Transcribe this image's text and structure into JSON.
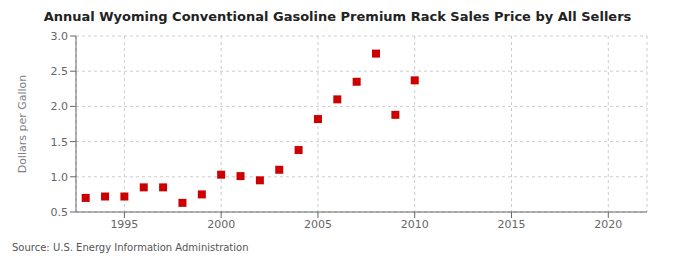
{
  "chart_data": {
    "type": "scatter",
    "title": "Annual Wyoming Conventional Gasoline Premium Rack Sales Price by All Sellers",
    "ylabel": "Dollars per Gallon",
    "annotation": "Source: U.S. Energy Information Administration",
    "x": [
      1993,
      1994,
      1995,
      1996,
      1997,
      1998,
      1999,
      2000,
      2001,
      2002,
      2003,
      2004,
      2005,
      2006,
      2007,
      2008,
      2009,
      2010
    ],
    "values": [
      0.7,
      0.72,
      0.72,
      0.85,
      0.85,
      0.63,
      0.75,
      1.03,
      1.01,
      0.95,
      1.1,
      1.38,
      1.82,
      2.1,
      2.35,
      2.75,
      1.88,
      2.37
    ],
    "color": "#cc0000",
    "marker": "square",
    "xlim": [
      1992.5,
      2022
    ],
    "xticks": [
      1995,
      2000,
      2005,
      2010,
      2015,
      2020
    ],
    "ylim": [
      0.5,
      3.0
    ],
    "yticks": [
      0.5,
      {
        "value": 1.0,
        "label": "1.0"
      },
      1.5,
      {
        "value": 2.0,
        "label": "2.0"
      },
      2.5,
      {
        "value": 3.0,
        "label": "3.0"
      }
    ],
    "grid": true
  }
}
